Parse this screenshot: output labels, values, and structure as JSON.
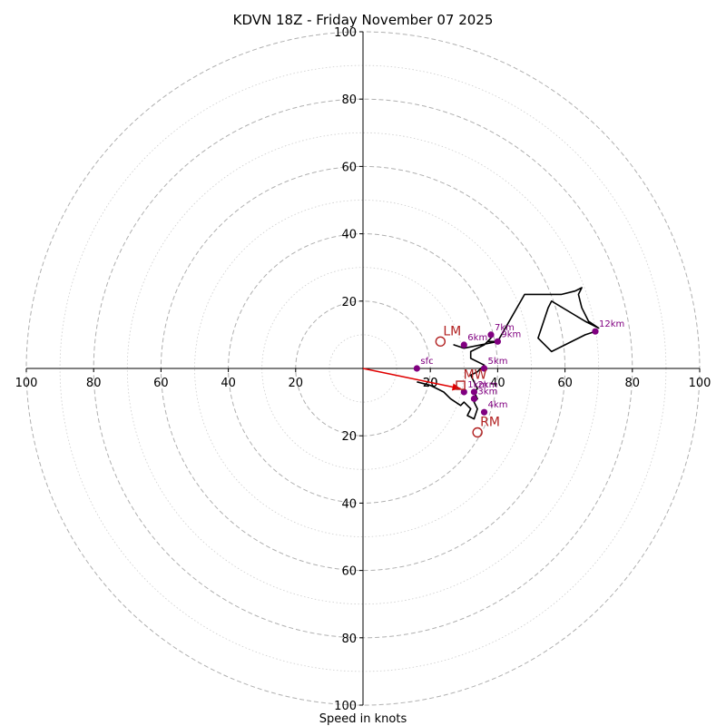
{
  "chart_data": {
    "type": "hodograph",
    "title": "KDVN 18Z - Friday November 07 2025",
    "xlabel": "Speed in knots",
    "range": [
      -100,
      100
    ],
    "major_rings": [
      20,
      40,
      60,
      80,
      100
    ],
    "minor_rings": [
      10,
      30,
      50,
      70,
      90
    ],
    "x_ticks": [
      -100,
      -80,
      -60,
      -40,
      -20,
      20,
      40,
      60,
      80,
      100
    ],
    "x_tick_labels": [
      "100",
      "80",
      "60",
      "40",
      "20",
      "20",
      "40",
      "60",
      "80",
      "100"
    ],
    "y_ticks": [
      100,
      80,
      60,
      40,
      20,
      -20,
      -40,
      -60,
      -80,
      -100
    ],
    "y_tick_labels": [
      "100",
      "80",
      "60",
      "40",
      "20",
      "20",
      "40",
      "60",
      "80",
      "100"
    ],
    "hodograph_trace": [
      [
        16,
        -4
      ],
      [
        20,
        -5
      ],
      [
        24,
        -7
      ],
      [
        26,
        -9
      ],
      [
        29,
        -11
      ],
      [
        30,
        -10
      ],
      [
        31,
        -11
      ],
      [
        32,
        -12
      ],
      [
        31,
        -14
      ],
      [
        33,
        -15
      ],
      [
        34,
        -12
      ],
      [
        33,
        -10
      ],
      [
        34,
        -9
      ],
      [
        33,
        -7
      ],
      [
        34,
        -6
      ],
      [
        33,
        -4
      ],
      [
        32,
        -2
      ],
      [
        34,
        -1
      ],
      [
        35,
        0
      ],
      [
        36,
        1
      ],
      [
        36,
        1
      ],
      [
        32,
        3
      ],
      [
        32,
        5
      ],
      [
        36,
        7
      ],
      [
        38,
        9
      ],
      [
        37,
        8
      ],
      [
        40,
        8
      ],
      [
        35,
        7
      ],
      [
        30,
        6
      ],
      [
        27,
        7
      ],
      [
        30,
        6
      ],
      [
        40,
        8
      ],
      [
        48,
        22
      ],
      [
        59,
        22
      ],
      [
        63,
        23
      ],
      [
        65,
        24
      ],
      [
        64,
        22
      ],
      [
        65,
        18
      ],
      [
        67,
        14
      ],
      [
        70,
        12
      ],
      [
        66,
        14
      ],
      [
        56,
        20
      ],
      [
        55,
        18
      ],
      [
        52,
        9
      ],
      [
        56,
        5
      ],
      [
        60,
        7
      ],
      [
        66,
        10
      ],
      [
        69,
        11
      ]
    ],
    "height_points": [
      {
        "label": "sfc",
        "u": 16,
        "v": 0
      },
      {
        "label": "1km",
        "u": 30,
        "v": -7
      },
      {
        "label": "2km",
        "u": 33,
        "v": -7
      },
      {
        "label": "3km",
        "u": 33,
        "v": -9
      },
      {
        "label": "4km",
        "u": 36,
        "v": -13
      },
      {
        "label": "5km",
        "u": 36,
        "v": 0
      },
      {
        "label": "6km",
        "u": 30,
        "v": 7
      },
      {
        "label": "7km",
        "u": 38,
        "v": 10
      },
      {
        "label": "9km",
        "u": 40,
        "v": 8
      },
      {
        "label": "12km",
        "u": 69,
        "v": 11
      }
    ],
    "storm_motion": [
      {
        "label": "LM",
        "u": 23,
        "v": 8,
        "color": "#b22222"
      },
      {
        "label": "RM",
        "u": 34,
        "v": -19,
        "color": "#b22222"
      },
      {
        "label": "MW",
        "u": 29,
        "v": -5,
        "color": "#b22222"
      }
    ],
    "shear_vector": {
      "u": 29,
      "v": -6,
      "color": "#e00000"
    },
    "extra_label": {
      "text": "20",
      "u": 20,
      "v": -4
    },
    "colors": {
      "trace": "#000000",
      "points": "#800080",
      "motion": "#b22222"
    }
  }
}
